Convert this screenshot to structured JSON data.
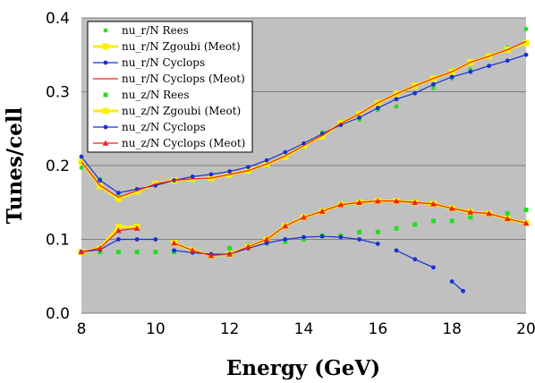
{
  "chart_data": {
    "type": "line",
    "title": "",
    "xlabel": "Energy (GeV)",
    "ylabel": "Tunes/cell",
    "xlim": [
      8,
      20
    ],
    "ylim": [
      0.0,
      0.4
    ],
    "x_ticks": [
      "8",
      "10",
      "12",
      "14",
      "16",
      "18",
      "20"
    ],
    "y_ticks": [
      "0.0",
      "0.1",
      "0.2",
      "0.3",
      "0.4"
    ],
    "grid": "horizontal",
    "background": "#c0c0c0",
    "legend_position": "top-left",
    "series": [
      {
        "name": "nu_r/N Rees",
        "color": "#22dd22",
        "marker": "circle",
        "line": false,
        "x": [
          8,
          8.5,
          9,
          9.5,
          10,
          10.5,
          11,
          11.5,
          12,
          12.5,
          13,
          13.5,
          14,
          14.5,
          15,
          15.5,
          16,
          16.5,
          17,
          17.5,
          18,
          18.5,
          19,
          19.5,
          20
        ],
        "y": [
          0.197,
          0.182,
          0.16,
          0.168,
          0.173,
          0.18,
          0.181,
          0.183,
          0.19,
          0.197,
          0.2,
          0.215,
          0.225,
          0.245,
          0.258,
          0.262,
          0.275,
          0.28,
          0.298,
          0.305,
          0.318,
          0.33,
          0.348,
          0.36,
          0.385
        ]
      },
      {
        "name": "nu_r/N Zgoubi (Meot)",
        "color": "#ffee00",
        "marker": "square",
        "line": true,
        "x": [
          8,
          8.5,
          9,
          9.5,
          10,
          10.5,
          11,
          11.5,
          12,
          12.5,
          13,
          13.5,
          14,
          14.5,
          15,
          15.5,
          16,
          16.5,
          17,
          17.5,
          18,
          18.5,
          19,
          19.5,
          20
        ],
        "y": [
          0.205,
          0.172,
          0.155,
          0.165,
          0.175,
          0.18,
          0.182,
          0.183,
          0.188,
          0.193,
          0.202,
          0.212,
          0.227,
          0.24,
          0.257,
          0.27,
          0.285,
          0.297,
          0.308,
          0.318,
          0.327,
          0.34,
          0.348,
          0.357,
          0.366
        ]
      },
      {
        "name": "nu_r/N Cyclops",
        "color": "#1a2fd6",
        "marker": "circle",
        "line": true,
        "x": [
          8,
          8.5,
          9,
          9.5,
          10,
          10.5,
          11,
          11.5,
          12,
          12.5,
          13,
          13.5,
          14,
          14.5,
          15,
          15.5,
          16,
          16.5,
          17,
          17.5,
          18,
          18.5,
          19,
          19.5,
          20
        ],
        "y": [
          0.212,
          0.18,
          0.163,
          0.168,
          0.173,
          0.18,
          0.185,
          0.188,
          0.192,
          0.198,
          0.207,
          0.218,
          0.23,
          0.243,
          0.255,
          0.265,
          0.278,
          0.29,
          0.298,
          0.31,
          0.32,
          0.327,
          0.335,
          0.342,
          0.35
        ]
      },
      {
        "name": "nu_r/N Cyclops (Meot)",
        "color": "#ee2222",
        "marker": "none",
        "line": true,
        "x": [
          8,
          8.5,
          9,
          9.5,
          10,
          10.5,
          11,
          11.5,
          12,
          12.5,
          13,
          13.5,
          14,
          14.5,
          15,
          15.5,
          16,
          16.5,
          17,
          17.5,
          18,
          18.5,
          19,
          19.5,
          20
        ],
        "y": [
          0.205,
          0.173,
          0.157,
          0.166,
          0.175,
          0.18,
          0.182,
          0.183,
          0.188,
          0.193,
          0.202,
          0.213,
          0.227,
          0.241,
          0.257,
          0.27,
          0.285,
          0.297,
          0.308,
          0.318,
          0.327,
          0.34,
          0.348,
          0.357,
          0.368
        ]
      },
      {
        "name": "nu_z/N Rees",
        "color": "#22dd22",
        "marker": "square",
        "line": false,
        "x": [
          8,
          8.5,
          9,
          9.5,
          10,
          10.5,
          11,
          11.5,
          12,
          12.5,
          13,
          13.5,
          14,
          14.5,
          15,
          15.5,
          16,
          16.5,
          17,
          17.5,
          18,
          18.5,
          19,
          19.5,
          20
        ],
        "y": [
          0.083,
          0.083,
          0.083,
          0.083,
          0.083,
          0.083,
          0.083,
          0.078,
          0.088,
          0.092,
          0.095,
          0.097,
          0.1,
          0.105,
          0.105,
          0.11,
          0.11,
          0.115,
          0.12,
          0.125,
          0.125,
          0.13,
          0.135,
          0.135,
          0.14
        ]
      },
      {
        "name": "nu_z/N Zgoubi (Meot)",
        "color": "#ffee00",
        "marker": "square",
        "line": true,
        "segments": [
          {
            "x": [
              8,
              8.5,
              9,
              9.5
            ],
            "y": [
              0.083,
              0.088,
              0.117,
              0.117
            ]
          },
          {
            "x": [
              10.5,
              11,
              11.5,
              12,
              12.5,
              13,
              13.5,
              14,
              14.5,
              15,
              15.5,
              16,
              16.5,
              17,
              17.5,
              18,
              18.5,
              19,
              19.5,
              20
            ],
            "y": [
              0.095,
              0.085,
              0.078,
              0.08,
              0.09,
              0.1,
              0.118,
              0.13,
              0.138,
              0.147,
              0.15,
              0.152,
              0.152,
              0.15,
              0.148,
              0.142,
              0.137,
              0.135,
              0.128,
              0.122
            ]
          }
        ]
      },
      {
        "name": "nu_z/N Cyclops",
        "color": "#1a2fd6",
        "marker": "circle",
        "line": true,
        "segments": [
          {
            "x": [
              8,
              8.5,
              9,
              9.5,
              10
            ],
            "y": [
              0.083,
              0.086,
              0.1,
              0.1,
              0.1
            ]
          },
          {
            "x": [
              10.5,
              11,
              11.5,
              12,
              12.5,
              13,
              13.5,
              14,
              14.5,
              15,
              15.5,
              16
            ],
            "y": [
              0.085,
              0.082,
              0.08,
              0.08,
              0.088,
              0.095,
              0.1,
              0.103,
              0.104,
              0.103,
              0.1,
              0.094
            ]
          },
          {
            "x": [
              16.5,
              17,
              17.5
            ],
            "y": [
              0.085,
              0.073,
              0.062
            ]
          },
          {
            "x": [
              18,
              18.3
            ],
            "y": [
              0.043,
              0.03
            ]
          }
        ]
      },
      {
        "name": "nu_z/N Cyclops (Meot)",
        "color": "#ee2222",
        "marker": "triangle",
        "line": true,
        "segments": [
          {
            "x": [
              8,
              8.5,
              9,
              9.5
            ],
            "y": [
              0.083,
              0.088,
              0.112,
              0.115
            ]
          },
          {
            "x": [
              10.5,
              11,
              11.5,
              12,
              12.5,
              13,
              13.5,
              14,
              14.5,
              15,
              15.5,
              16,
              16.5,
              17,
              17.5,
              18,
              18.5,
              19,
              19.5,
              20
            ],
            "y": [
              0.095,
              0.085,
              0.078,
              0.08,
              0.09,
              0.1,
              0.118,
              0.13,
              0.138,
              0.147,
              0.15,
              0.152,
              0.152,
              0.15,
              0.148,
              0.142,
              0.137,
              0.135,
              0.128,
              0.122
            ]
          }
        ]
      }
    ]
  }
}
